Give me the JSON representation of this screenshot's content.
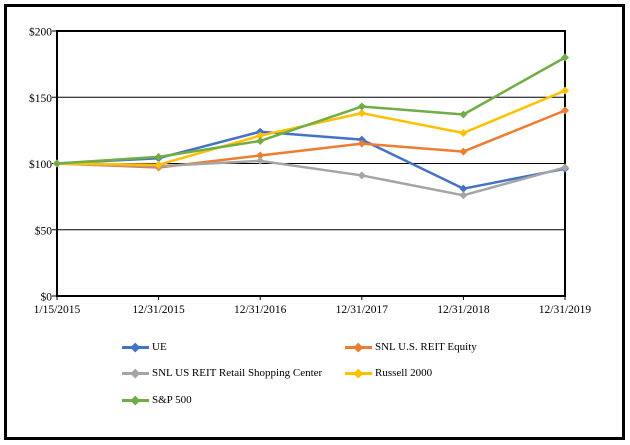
{
  "figure": {
    "background_color": "#ffffff",
    "border_color": "#000000"
  },
  "chart_data": {
    "type": "line",
    "title": "",
    "xlabel": "",
    "ylabel": "",
    "categories": [
      "1/15/2015",
      "12/31/2015",
      "12/31/2016",
      "12/31/2017",
      "12/31/2018",
      "12/31/2019"
    ],
    "series": [
      {
        "name": "UE",
        "color": "#4472C4",
        "values": [
          100,
          104,
          124,
          118,
          81,
          96
        ]
      },
      {
        "name": "SNL U.S. REIT Equity",
        "color": "#ED7D31",
        "values": [
          100,
          97,
          106,
          115,
          109,
          140
        ]
      },
      {
        "name": "SNL US REIT Retail Shopping Center",
        "color": "#A5A5A5",
        "values": [
          100,
          98,
          102,
          91,
          76,
          97
        ]
      },
      {
        "name": "Russell 2000",
        "color": "#FFC000",
        "values": [
          100,
          99,
          121,
          138,
          123,
          155
        ]
      },
      {
        "name": "S&P 500",
        "color": "#70AD47",
        "values": [
          100,
          105,
          117,
          143,
          137,
          180
        ]
      }
    ],
    "y_axis": {
      "min": 0,
      "max": 200,
      "step": 50,
      "tick_labels": [
        "$0",
        "$50",
        "$100",
        "$150",
        "$200"
      ]
    },
    "x_axis": {
      "tick_label_source": "categories"
    },
    "grid": true,
    "legend_position": "bottom",
    "marker_shape": "diamond"
  }
}
